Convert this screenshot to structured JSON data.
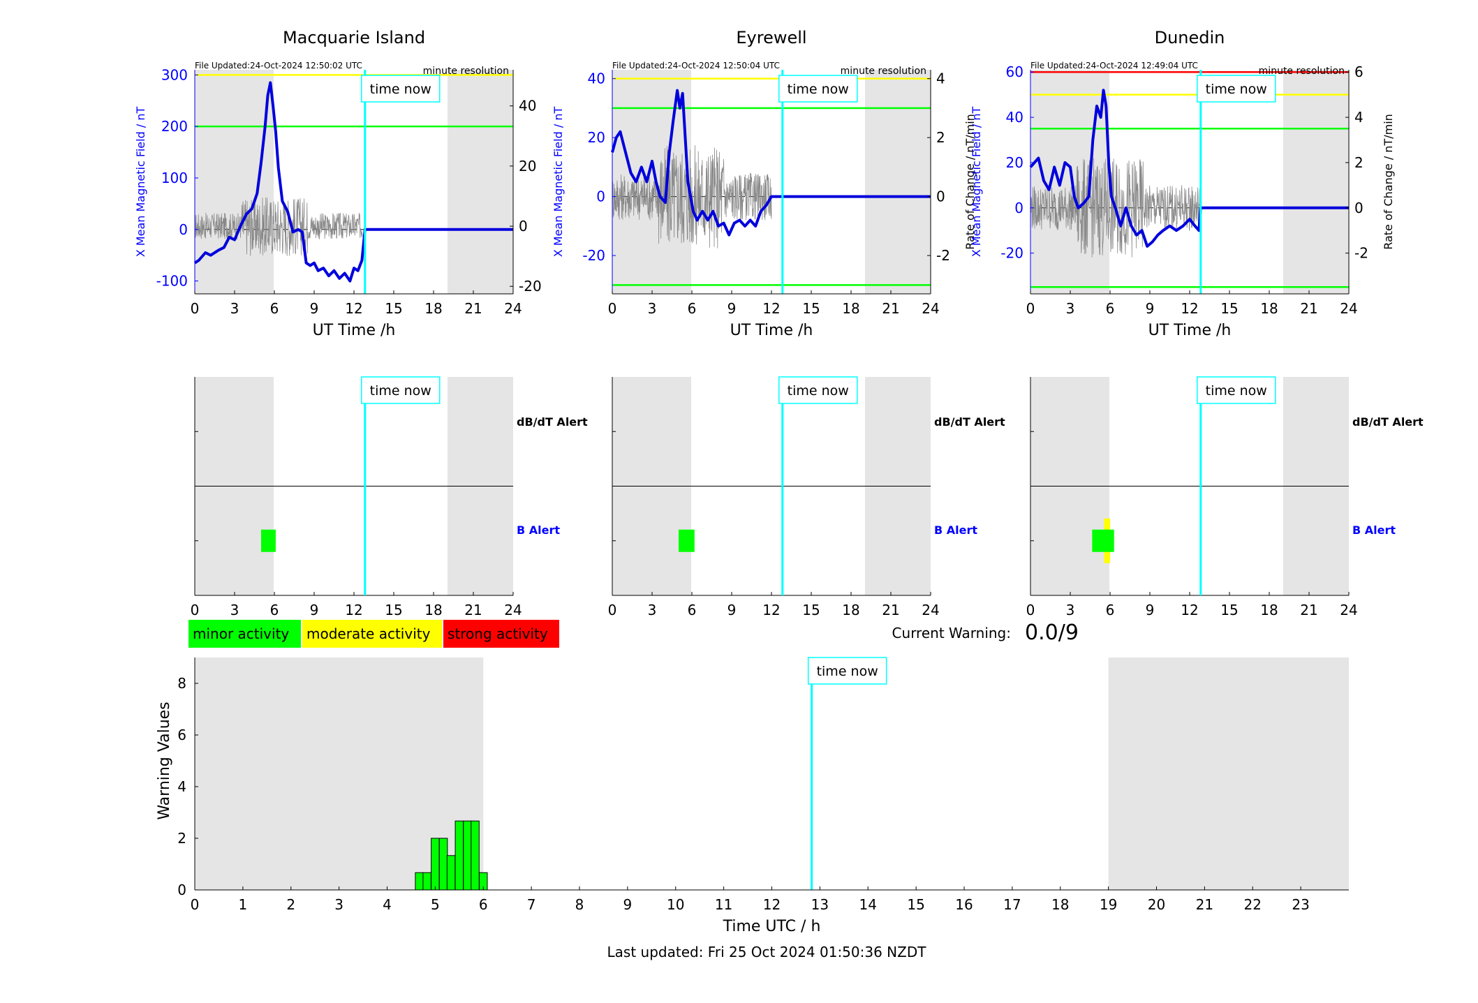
{
  "chart_data": [
    {
      "type": "line",
      "title": "Macquarie Island",
      "file_updated": "File Updated:24-Oct-2024 12:50:02 UTC",
      "resolution": "minute resolution",
      "time_now_label": "time now",
      "time_now_h": 12.83,
      "xlabel": "UT Time /h",
      "ylabel_left": "X Mean Magnetic Field / nT",
      "ylabel_right": "",
      "xlim": [
        0,
        24
      ],
      "ylim_left": [
        -125,
        310
      ],
      "ylim_right": [
        -22.5,
        52
      ],
      "xticks": [
        0,
        3,
        6,
        9,
        12,
        15,
        18,
        21,
        24
      ],
      "yticks_left": [
        -100,
        0,
        100,
        200,
        300
      ],
      "yticks_right": [
        -20,
        0,
        20,
        40
      ],
      "shade": [
        [
          0,
          5.95
        ],
        [
          19.05,
          24
        ]
      ],
      "thresholds": [
        {
          "value": 300,
          "color": "#ffff00"
        },
        {
          "value": 200,
          "color": "#00ff00"
        }
      ],
      "field_x": [
        0,
        0.3,
        0.8,
        1.2,
        1.8,
        2.2,
        2.6,
        3.0,
        3.5,
        3.9,
        4.3,
        4.7,
        5.0,
        5.3,
        5.5,
        5.7,
        5.9,
        6.1,
        6.3,
        6.6,
        7.0,
        7.4,
        7.8,
        8.1,
        8.4,
        8.7,
        9.0,
        9.3,
        9.7,
        10.1,
        10.5,
        10.9,
        11.3,
        11.7,
        12.0,
        12.3,
        12.6,
        12.83,
        24
      ],
      "field_y": [
        -65,
        -60,
        -45,
        -50,
        -40,
        -35,
        -15,
        -20,
        10,
        30,
        40,
        70,
        130,
        200,
        260,
        285,
        240,
        190,
        120,
        55,
        35,
        -5,
        0,
        -5,
        -65,
        -70,
        -65,
        -80,
        -75,
        -90,
        -80,
        -95,
        -85,
        -100,
        -75,
        -80,
        -60,
        0,
        0
      ],
      "noise_range": [
        0,
        12.83
      ],
      "noise_amp": 4.5
    },
    {
      "type": "line",
      "title": "Eyrewell",
      "file_updated": "File Updated:24-Oct-2024 12:50:04 UTC",
      "resolution": "minute resolution",
      "time_now_label": "time now",
      "time_now_h": 12.83,
      "xlabel": "UT Time /h",
      "ylabel_left": "X Mean Magnetic Field / nT",
      "ylabel_right": "Rate of Change / nT/min",
      "xlim": [
        0,
        24
      ],
      "ylim_left": [
        -33,
        43
      ],
      "ylim_right": [
        -3.3,
        4.3
      ],
      "xticks": [
        0,
        3,
        6,
        9,
        12,
        15,
        18,
        21,
        24
      ],
      "yticks_left": [
        -20,
        0,
        20,
        40
      ],
      "yticks_right": [
        -2,
        0,
        2,
        4
      ],
      "shade": [
        [
          0,
          5.95
        ],
        [
          19.05,
          24
        ]
      ],
      "thresholds": [
        {
          "value": 40,
          "color": "#ffff00"
        },
        {
          "value": 30,
          "color": "#00ff00"
        },
        {
          "value": -30,
          "color": "#00ff00"
        }
      ],
      "field_x": [
        0,
        0.3,
        0.6,
        1.0,
        1.4,
        1.8,
        2.2,
        2.6,
        3.0,
        3.3,
        3.6,
        4.0,
        4.3,
        4.6,
        4.9,
        5.1,
        5.3,
        5.5,
        5.7,
        5.9,
        6.1,
        6.4,
        6.8,
        7.2,
        7.6,
        8.0,
        8.4,
        8.8,
        9.2,
        9.6,
        10.0,
        10.4,
        10.8,
        11.2,
        11.6,
        12.0,
        12.83,
        24
      ],
      "field_y": [
        15,
        20,
        22,
        15,
        8,
        5,
        10,
        5,
        12,
        5,
        0,
        -2,
        15,
        26,
        36,
        30,
        35,
        20,
        5,
        0,
        -5,
        -8,
        -5,
        -8,
        -5,
        -10,
        -9,
        -13,
        -9,
        -8,
        -10,
        -8,
        -10,
        -5,
        -3,
        0,
        0,
        0
      ],
      "noise_range": [
        0,
        12.0
      ],
      "noise_amp": 0.8
    },
    {
      "type": "line",
      "title": "Dunedin",
      "file_updated": "File Updated:24-Oct-2024 12:49:04 UTC",
      "resolution": "minute resolution",
      "time_now_label": "time now",
      "time_now_h": 12.83,
      "xlabel": "UT Time /h",
      "ylabel_left": "X Mean Magnetic Field / nT",
      "ylabel_right": "Rate of Change / nT/min",
      "xlim": [
        0,
        24
      ],
      "ylim_left": [
        -38,
        61
      ],
      "ylim_right": [
        -3.8,
        6.1
      ],
      "xticks": [
        0,
        3,
        6,
        9,
        12,
        15,
        18,
        21,
        24
      ],
      "yticks_left": [
        -20,
        0,
        20,
        40,
        60
      ],
      "yticks_right": [
        -2,
        0,
        2,
        4,
        6
      ],
      "shade": [
        [
          0,
          5.95
        ],
        [
          19.05,
          24
        ]
      ],
      "thresholds": [
        {
          "value": 60,
          "color": "#ff0000"
        },
        {
          "value": 50,
          "color": "#ffff00"
        },
        {
          "value": 35,
          "color": "#00ff00"
        },
        {
          "value": -35,
          "color": "#00ff00"
        }
      ],
      "field_x": [
        0,
        0.3,
        0.6,
        1.0,
        1.4,
        1.8,
        2.2,
        2.6,
        3.0,
        3.3,
        3.6,
        4.0,
        4.4,
        4.7,
        5.0,
        5.3,
        5.5,
        5.7,
        5.9,
        6.1,
        6.4,
        6.8,
        7.2,
        7.6,
        8.0,
        8.4,
        8.8,
        9.2,
        9.6,
        10.0,
        10.5,
        11.0,
        11.5,
        12.0,
        12.4,
        12.7,
        12.83,
        24
      ],
      "field_y": [
        18,
        20,
        22,
        12,
        8,
        18,
        10,
        20,
        18,
        5,
        0,
        2,
        5,
        30,
        45,
        40,
        52,
        45,
        20,
        5,
        0,
        -8,
        0,
        -8,
        -12,
        -10,
        -17,
        -15,
        -12,
        -10,
        -8,
        -10,
        -8,
        -5,
        -8,
        -10,
        0,
        0
      ],
      "noise_range": [
        0,
        12.83
      ],
      "noise_amp": 1.0
    }
  ],
  "alert_panels": [
    {
      "time_now_label": "time now",
      "time_now_h": 12.83,
      "row_labels": [
        "dB/dT Alert",
        "B Alert"
      ],
      "xticks": [
        0,
        3,
        6,
        9,
        12,
        15,
        18,
        21,
        24
      ],
      "shade": [
        [
          0,
          5.95
        ],
        [
          19.05,
          24
        ]
      ],
      "events": [
        {
          "row": "B Alert",
          "start_h": 5.0,
          "end_h": 6.1,
          "level": "minor"
        }
      ]
    },
    {
      "time_now_label": "time now",
      "time_now_h": 12.83,
      "row_labels": [
        "dB/dT Alert",
        "B Alert"
      ],
      "xticks": [
        0,
        3,
        6,
        9,
        12,
        15,
        18,
        21,
        24
      ],
      "shade": [
        [
          0,
          5.95
        ],
        [
          19.05,
          24
        ]
      ],
      "events": [
        {
          "row": "B Alert",
          "start_h": 5.0,
          "end_h": 6.2,
          "level": "minor"
        }
      ]
    },
    {
      "time_now_label": "time now",
      "time_now_h": 12.83,
      "row_labels": [
        "dB/dT Alert",
        "B Alert"
      ],
      "xticks": [
        0,
        3,
        6,
        9,
        12,
        15,
        18,
        21,
        24
      ],
      "shade": [
        [
          0,
          5.95
        ],
        [
          19.05,
          24
        ]
      ],
      "events": [
        {
          "row": "B Alert",
          "start_h": 5.55,
          "end_h": 6.0,
          "level": "moderate",
          "tall": true
        },
        {
          "row": "B Alert",
          "start_h": 4.65,
          "end_h": 6.3,
          "level": "minor"
        }
      ]
    }
  ],
  "legend": [
    {
      "label": "minor activity",
      "color": "#00ff00"
    },
    {
      "label": "moderate activity",
      "color": "#ffff00"
    },
    {
      "label": "strong activity",
      "color": "#ff0000"
    }
  ],
  "current_warning": {
    "label": "Current Warning:",
    "value": "0.0/9"
  },
  "warning_chart": {
    "type": "bar",
    "time_now_label": "time now",
    "time_now_h": 12.83,
    "xlabel": "Time UTC / h",
    "ylabel": "Warning Values",
    "xlim": [
      0,
      24
    ],
    "ylim": [
      0,
      9
    ],
    "xticks": [
      0,
      1,
      2,
      3,
      4,
      5,
      6,
      7,
      8,
      9,
      10,
      11,
      12,
      13,
      14,
      15,
      16,
      17,
      18,
      19,
      20,
      21,
      22,
      23
    ],
    "yticks": [
      0,
      2,
      4,
      6,
      8
    ],
    "shade": [
      [
        0,
        6.0
      ],
      [
        19.0,
        24
      ]
    ],
    "bar_width_h": 0.1667,
    "bars": [
      {
        "t": 4.67,
        "v": 0.67
      },
      {
        "t": 4.83,
        "v": 0.67
      },
      {
        "t": 5.0,
        "v": 2.0
      },
      {
        "t": 5.17,
        "v": 2.0
      },
      {
        "t": 5.33,
        "v": 1.33
      },
      {
        "t": 5.5,
        "v": 2.67
      },
      {
        "t": 5.67,
        "v": 2.67
      },
      {
        "t": 5.83,
        "v": 2.67
      },
      {
        "t": 6.0,
        "v": 0.67
      }
    ]
  },
  "last_updated": "Last updated: Fri 25 Oct 2024 01:50:36 NZDT",
  "colors": {
    "field_line": "#0000dd",
    "noise": "#888888",
    "time_now": "#00ffff",
    "shade": "#e5e5e5",
    "minor": "#00ff00",
    "moderate": "#ffff00",
    "strong": "#ff0000",
    "left_axis": "#0000ff"
  }
}
